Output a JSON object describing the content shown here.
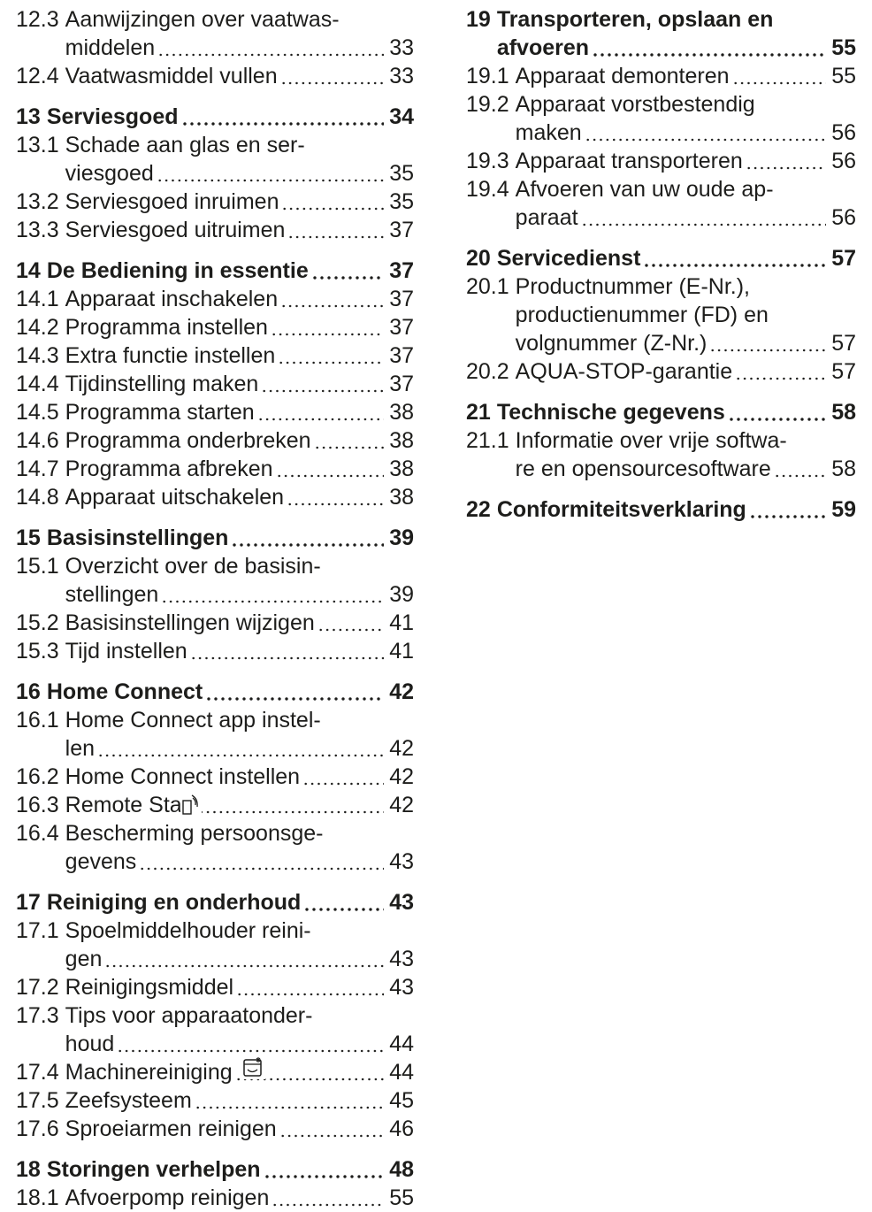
{
  "columns": [
    {
      "sections": [
        {
          "items": [
            {
              "number": "12.3",
              "lines": [
                "Aanwijzingen over vaatwas-",
                "middelen"
              ],
              "page": 33
            },
            {
              "number": "12.4",
              "lines": [
                "Vaatwasmiddel vullen"
              ],
              "page": 33
            }
          ]
        },
        {
          "heading": {
            "number": "13",
            "lines": [
              "Serviesgoed"
            ],
            "page": 34
          },
          "items": [
            {
              "number": "13.1",
              "lines": [
                "Schade aan glas en ser-",
                "viesgoed"
              ],
              "page": 35
            },
            {
              "number": "13.2",
              "lines": [
                "Serviesgoed inruimen"
              ],
              "page": 35
            },
            {
              "number": "13.3",
              "lines": [
                "Serviesgoed uitruimen"
              ],
              "page": 37
            }
          ]
        },
        {
          "heading": {
            "number": "14",
            "lines": [
              "De Bediening in essentie"
            ],
            "page": 37
          },
          "items": [
            {
              "number": "14.1",
              "lines": [
                "Apparaat inschakelen"
              ],
              "page": 37
            },
            {
              "number": "14.2",
              "lines": [
                "Programma instellen"
              ],
              "page": 37
            },
            {
              "number": "14.3",
              "lines": [
                "Extra functie instellen"
              ],
              "page": 37
            },
            {
              "number": "14.4",
              "lines": [
                "Tijdinstelling maken"
              ],
              "page": 37
            },
            {
              "number": "14.5",
              "lines": [
                "Programma starten"
              ],
              "page": 38
            },
            {
              "number": "14.6",
              "lines": [
                "Programma onderbreken"
              ],
              "page": 38
            },
            {
              "number": "14.7",
              "lines": [
                "Programma afbreken"
              ],
              "page": 38
            },
            {
              "number": "14.8",
              "lines": [
                "Apparaat uitschakelen"
              ],
              "page": 38
            }
          ]
        },
        {
          "heading": {
            "number": "15",
            "lines": [
              "Basisinstellingen"
            ],
            "page": 39
          },
          "items": [
            {
              "number": "15.1",
              "lines": [
                "Overzicht over de basisin-",
                "stellingen"
              ],
              "page": 39
            },
            {
              "number": "15.2",
              "lines": [
                "Basisinstellingen wijzigen"
              ],
              "page": 41
            },
            {
              "number": "15.3",
              "lines": [
                "Tijd instellen"
              ],
              "page": 41
            }
          ]
        },
        {
          "heading": {
            "number": "16",
            "lines": [
              "Home Connect"
            ],
            "page": 42
          },
          "items": [
            {
              "number": "16.1",
              "lines": [
                "Home Connect app instel-",
                "len"
              ],
              "page": 42
            },
            {
              "number": "16.2",
              "lines": [
                "Home Connect instellen"
              ],
              "page": 42
            },
            {
              "number": "16.3",
              "lines": [
                "Remote Start"
              ],
              "page": 42
            },
            {
              "number": "16.4",
              "lines": [
                "Bescherming persoonsge-",
                "gevens"
              ],
              "page": 43
            }
          ]
        },
        {
          "heading": {
            "number": "17",
            "lines": [
              "Reiniging en onderhoud"
            ],
            "page": 43
          },
          "items": [
            {
              "number": "17.1",
              "lines": [
                "Spoelmiddelhouder reini-",
                "gen"
              ],
              "page": 43
            },
            {
              "number": "17.2",
              "lines": [
                "Reinigingsmiddel"
              ],
              "page": 43
            },
            {
              "number": "17.3",
              "lines": [
                "Tips voor apparaatonder-",
                "houd"
              ],
              "page": 44
            },
            {
              "number": "17.4",
              "lines": [
                "Machinereiniging"
              ],
              "page": 44
            },
            {
              "number": "17.5",
              "lines": [
                "Zeefsysteem"
              ],
              "page": 45
            },
            {
              "number": "17.6",
              "lines": [
                "Sproeiarmen reinigen"
              ],
              "page": 46
            }
          ]
        },
        {
          "heading": {
            "number": "18",
            "lines": [
              "Storingen verhelpen"
            ],
            "page": 48
          },
          "items": [
            {
              "number": "18.1",
              "lines": [
                "Afvoerpomp reinigen"
              ],
              "page": 55
            }
          ]
        }
      ]
    },
    {
      "sections": [
        {
          "heading": {
            "number": "19",
            "lines": [
              "Transporteren, opslaan en",
              "afvoeren"
            ],
            "page": 55
          },
          "items": [
            {
              "number": "19.1",
              "lines": [
                "Apparaat demonteren"
              ],
              "page": 55
            },
            {
              "number": "19.2",
              "lines": [
                "Apparaat vorstbestendig",
                "maken"
              ],
              "page": 56
            },
            {
              "number": "19.3",
              "lines": [
                "Apparaat transporteren"
              ],
              "page": 56
            },
            {
              "number": "19.4",
              "lines": [
                "Afvoeren van uw oude ap-",
                "paraat"
              ],
              "page": 56
            }
          ]
        },
        {
          "heading": {
            "number": "20",
            "lines": [
              "Servicedienst"
            ],
            "page": 57
          },
          "items": [
            {
              "number": "20.1",
              "lines": [
                "Productnummer (E-Nr.),",
                "productienummer (FD) en",
                "volgnummer (Z-Nr.)"
              ],
              "page": 57
            },
            {
              "number": "20.2",
              "lines": [
                "AQUA-STOP-garantie"
              ],
              "page": 57
            }
          ]
        },
        {
          "heading": {
            "number": "21",
            "lines": [
              "Technische gegevens"
            ],
            "page": 58
          },
          "items": [
            {
              "number": "21.1",
              "lines": [
                "Informatie over vrije softwa-",
                "re en opensourcesoftware"
              ],
              "page": 58
            }
          ]
        },
        {
          "heading": {
            "number": "22",
            "lines": [
              "Conformiteitsverklaring"
            ],
            "page": 59
          },
          "items": []
        }
      ]
    }
  ]
}
